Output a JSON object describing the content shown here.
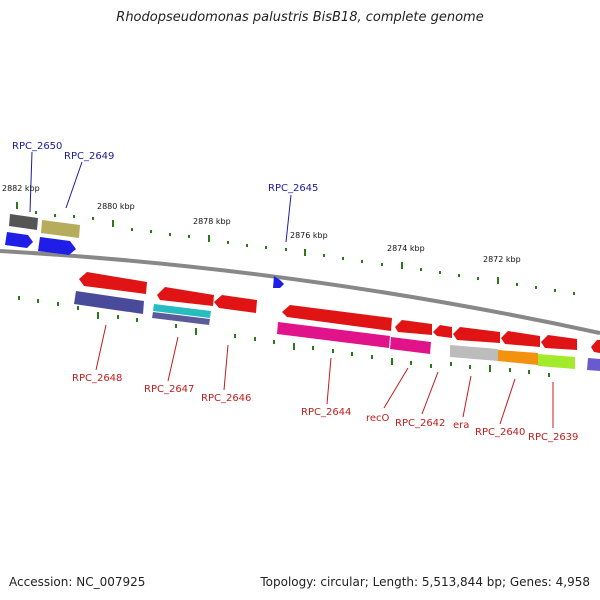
{
  "title": "Rhodopseudomonas palustris BisB18, complete genome",
  "accession_label": "Accession: NC_007925",
  "topology_label": "Topology: circular; Length: 5,513,844 bp; Genes: 4,958",
  "kbp_labels": [
    "2882 kbp",
    "2880 kbp",
    "2878 kbp",
    "2876 kbp",
    "2874 kbp",
    "2872 kbp"
  ],
  "genes": [
    {
      "name": "RPC_2650",
      "color": "#1a1aa6"
    },
    {
      "name": "RPC_2649",
      "color": "#1a1aa6"
    },
    {
      "name": "RPC_2645",
      "color": "#1a1aa6"
    },
    {
      "name": "RPC_2648",
      "color": "#c21c1c"
    },
    {
      "name": "RPC_2647",
      "color": "#c21c1c"
    },
    {
      "name": "RPC_2646",
      "color": "#c21c1c"
    },
    {
      "name": "RPC_2644",
      "color": "#c21c1c"
    },
    {
      "name": "recO",
      "color": "#c21c1c"
    },
    {
      "name": "RPC_2642",
      "color": "#c21c1c"
    },
    {
      "name": "era",
      "color": "#c21c1c"
    },
    {
      "name": "RPC_2640",
      "color": "#c21c1c"
    },
    {
      "name": "RPC_2639",
      "color": "#c21c1c"
    }
  ]
}
